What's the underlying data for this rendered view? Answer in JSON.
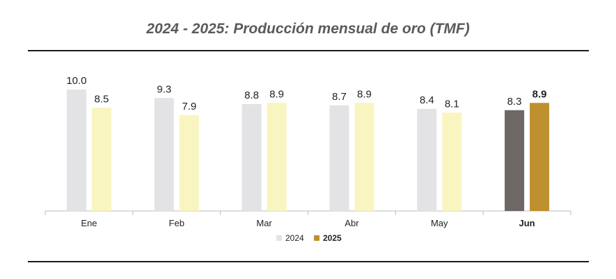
{
  "chart_data": {
    "type": "bar",
    "title": "2024 - 2025: Producción mensual de oro  (TMF)",
    "categories": [
      "Ene",
      "Feb",
      "Mar",
      "Abr",
      "May",
      "Jun"
    ],
    "highlight_category": "Jun",
    "series": [
      {
        "name": "2024",
        "values": [
          10.0,
          9.3,
          8.8,
          8.7,
          8.4,
          8.3
        ],
        "color": "#e3e3e5",
        "highlight_color": "#6e6766",
        "labels": [
          "10.0",
          "9.3",
          "8.8",
          "8.7",
          "8.4",
          "8.3"
        ]
      },
      {
        "name": "2025",
        "values": [
          8.5,
          7.9,
          8.9,
          8.9,
          8.1,
          8.9
        ],
        "color": "#f8f5c0",
        "highlight_color": "#bf9030",
        "labels": [
          "8.5",
          "7.9",
          "8.9",
          "8.9",
          "8.1",
          "8.9"
        ]
      }
    ],
    "ylim": [
      0,
      10.0
    ],
    "grid": false,
    "legend": {
      "placement": "bottom-center",
      "bold_entry": "2025"
    }
  }
}
